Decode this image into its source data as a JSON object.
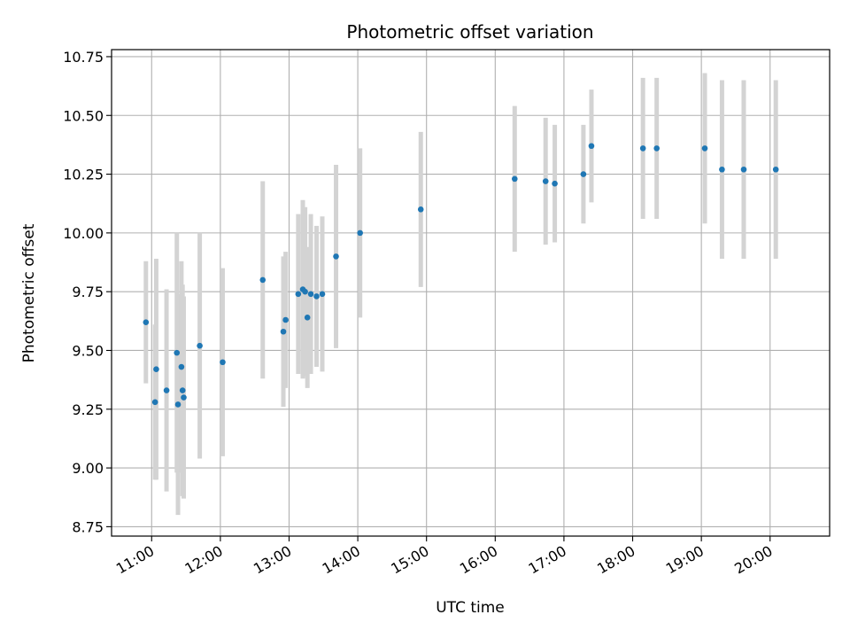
{
  "chart_data": {
    "type": "scatter",
    "title": "Photometric offset variation",
    "xlabel": "UTC time",
    "ylabel": "Photometric offset",
    "xlim": [
      "10:25",
      "20:52"
    ],
    "ylim": [
      8.71,
      10.78
    ],
    "grid": true,
    "x_ticks": [
      "11:00",
      "12:00",
      "13:00",
      "14:00",
      "15:00",
      "16:00",
      "17:00",
      "18:00",
      "19:00",
      "20:00"
    ],
    "y_ticks": [
      "8.75",
      "9.00",
      "9.25",
      "9.50",
      "9.75",
      "10.00",
      "10.25",
      "10.50",
      "10.75"
    ],
    "colors": {
      "point": "#1f77b4",
      "errorbar": "#d3d3d3",
      "grid": "#b0b0b0"
    },
    "series": [
      {
        "points": [
          {
            "x": "10:55",
            "y": 9.62,
            "err": 0.26
          },
          {
            "x": "11:03",
            "y": 9.28,
            "err": 0.33
          },
          {
            "x": "11:04",
            "y": 9.42,
            "err": 0.47
          },
          {
            "x": "11:13",
            "y": 9.33,
            "err": 0.43
          },
          {
            "x": "11:22",
            "y": 9.49,
            "err": 0.51
          },
          {
            "x": "11:23",
            "y": 9.27,
            "err": 0.47
          },
          {
            "x": "11:26",
            "y": 9.43,
            "err": 0.45
          },
          {
            "x": "11:27",
            "y": 9.33,
            "err": 0.45
          },
          {
            "x": "11:28",
            "y": 9.3,
            "err": 0.43
          },
          {
            "x": "11:42",
            "y": 9.52,
            "err": 0.48
          },
          {
            "x": "12:02",
            "y": 9.45,
            "err": 0.4
          },
          {
            "x": "12:37",
            "y": 9.8,
            "err": 0.42
          },
          {
            "x": "12:55",
            "y": 9.58,
            "err": 0.32
          },
          {
            "x": "12:57",
            "y": 9.63,
            "err": 0.29
          },
          {
            "x": "13:08",
            "y": 9.74,
            "err": 0.34
          },
          {
            "x": "13:12",
            "y": 9.76,
            "err": 0.38
          },
          {
            "x": "13:14",
            "y": 9.75,
            "err": 0.36
          },
          {
            "x": "13:16",
            "y": 9.64,
            "err": 0.3
          },
          {
            "x": "13:19",
            "y": 9.74,
            "err": 0.34
          },
          {
            "x": "13:24",
            "y": 9.73,
            "err": 0.3
          },
          {
            "x": "13:29",
            "y": 9.74,
            "err": 0.33
          },
          {
            "x": "13:41",
            "y": 9.9,
            "err": 0.39
          },
          {
            "x": "14:02",
            "y": 10.0,
            "err": 0.36
          },
          {
            "x": "14:55",
            "y": 10.1,
            "err": 0.33
          },
          {
            "x": "16:17",
            "y": 10.23,
            "err": 0.31
          },
          {
            "x": "16:44",
            "y": 10.22,
            "err": 0.27
          },
          {
            "x": "16:52",
            "y": 10.21,
            "err": 0.25
          },
          {
            "x": "17:17",
            "y": 10.25,
            "err": 0.21
          },
          {
            "x": "17:24",
            "y": 10.37,
            "err": 0.24
          },
          {
            "x": "18:09",
            "y": 10.36,
            "err": 0.3
          },
          {
            "x": "18:21",
            "y": 10.36,
            "err": 0.3
          },
          {
            "x": "19:03",
            "y": 10.36,
            "err": 0.32
          },
          {
            "x": "19:18",
            "y": 10.27,
            "err": 0.38
          },
          {
            "x": "19:37",
            "y": 10.27,
            "err": 0.38
          },
          {
            "x": "20:05",
            "y": 10.27,
            "err": 0.38
          }
        ]
      }
    ]
  }
}
